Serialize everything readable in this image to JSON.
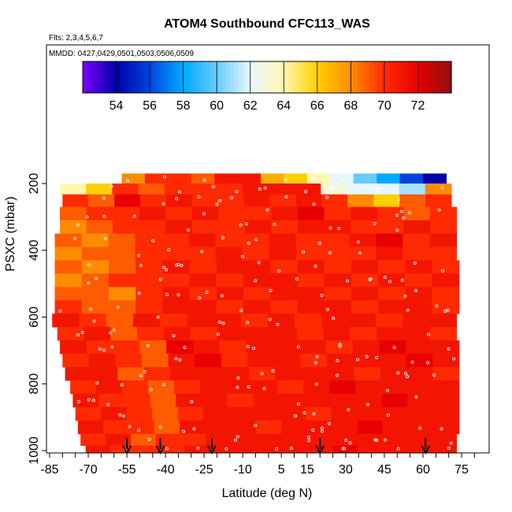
{
  "chart_data": {
    "type": "heatmap",
    "title": "ATOM4 Southbound CFC113_WAS",
    "flights_note": "Flts: 2,3,4,5,6,7",
    "dates_note": "MMDD: 0427,0429,0501,0503,0506,0509",
    "xlabel": "Latitude (deg N)",
    "ylabel": "PSXC (mbar)",
    "x_ticks": [
      -85,
      -70,
      -55,
      -40,
      -25,
      -10,
      5,
      15,
      30,
      45,
      60,
      75
    ],
    "x_tick_labels": [
      "-85",
      "-70",
      "-55",
      "-40",
      "-25",
      "-10",
      "5",
      "15",
      "30",
      "45",
      "60",
      "75"
    ],
    "y_ticks": [
      200,
      400,
      600,
      800,
      1000
    ],
    "y_tick_labels": [
      "200",
      "400",
      "600",
      "800",
      "1000"
    ],
    "y_reversed": true,
    "colorbar": {
      "range": [
        52,
        74
      ],
      "ticks": [
        54,
        56,
        58,
        60,
        62,
        64,
        66,
        68,
        70,
        72
      ],
      "tick_labels": [
        "54",
        "56",
        "58",
        "60",
        "62",
        "64",
        "66",
        "68",
        "70",
        "72"
      ],
      "colors": [
        "#7a00ff",
        "#0000aa",
        "#0044dd",
        "#00aaff",
        "#66ccff",
        "#e8f6ff",
        "#fff7b0",
        "#ffd000",
        "#ff8c00",
        "#ff2a00",
        "#e80000",
        "#8f1010"
      ]
    },
    "arrows_latitude": [
      -55,
      -42,
      -22,
      20,
      61
    ],
    "row_pressures": [
      185,
      215,
      250,
      290,
      330,
      370,
      410,
      450,
      490,
      530,
      570,
      610,
      650,
      690,
      730,
      770,
      810,
      850,
      890,
      930,
      970,
      1000
    ],
    "row_lat_start": [
      -57,
      -81,
      -80,
      -81,
      -81,
      -83,
      -83,
      -83,
      -83,
      -83,
      -83,
      -84,
      -82,
      -81,
      -80,
      -79,
      -77,
      -76,
      -75,
      -74,
      -73,
      -71
    ],
    "row_lat_end": [
      69,
      71,
      71,
      73,
      73,
      73,
      73,
      74,
      74,
      74,
      74,
      73,
      73,
      74,
      74,
      74,
      74,
      74,
      74,
      74,
      73,
      73
    ],
    "row_values": [
      [
        68,
        70,
        70,
        69,
        71,
        71,
        67,
        66,
        64,
        62,
        60,
        58,
        56,
        54
      ],
      [
        64,
        66,
        70,
        69,
        70,
        70,
        70,
        71,
        71,
        71,
        63,
        62,
        62,
        61,
        68
      ],
      [
        70,
        69,
        72,
        70,
        71,
        70,
        70,
        71,
        70,
        71,
        70,
        68,
        66,
        69,
        70
      ],
      [
        69,
        70,
        70,
        71,
        70,
        71,
        70,
        70,
        71,
        72,
        70,
        71,
        70,
        69,
        70
      ],
      [
        68,
        69,
        70,
        70,
        71,
        70,
        70,
        71,
        70,
        71,
        71,
        70,
        70,
        71,
        70
      ],
      [
        69,
        68,
        69,
        70,
        70,
        71,
        70,
        70,
        71,
        70,
        70,
        71,
        72,
        70,
        71
      ],
      [
        68,
        69,
        69,
        70,
        70,
        70,
        71,
        70,
        71,
        70,
        70,
        70,
        71,
        70,
        70
      ],
      [
        69,
        68,
        69,
        70,
        71,
        70,
        71,
        71,
        70,
        71,
        70,
        71,
        70,
        71,
        70
      ],
      [
        68,
        69,
        70,
        70,
        70,
        71,
        70,
        71,
        71,
        70,
        71,
        70,
        71,
        70,
        71
      ],
      [
        69,
        69,
        68,
        70,
        71,
        70,
        71,
        70,
        71,
        71,
        70,
        71,
        70,
        71,
        70
      ],
      [
        70,
        69,
        69,
        70,
        71,
        71,
        70,
        71,
        70,
        71,
        71,
        70,
        71,
        71,
        70
      ],
      [
        71,
        70,
        69,
        71,
        70,
        71,
        71,
        70,
        71,
        70,
        71,
        71,
        70,
        71,
        71
      ],
      [
        70,
        71,
        69,
        70,
        71,
        70,
        71,
        71,
        71,
        70,
        71,
        70,
        71,
        71,
        70
      ],
      [
        71,
        70,
        70,
        69,
        72,
        71,
        70,
        71,
        71,
        71,
        70,
        71,
        72,
        71,
        71
      ],
      [
        70,
        71,
        70,
        69,
        71,
        72,
        70,
        71,
        71,
        70,
        71,
        71,
        71,
        72,
        71
      ],
      [
        71,
        71,
        69,
        70,
        71,
        71,
        71,
        70,
        71,
        71,
        71,
        70,
        71,
        71,
        70
      ],
      [
        70,
        71,
        70,
        69,
        70,
        71,
        71,
        71,
        70,
        71,
        72,
        71,
        71,
        71,
        71
      ],
      [
        71,
        70,
        70,
        69,
        71,
        71,
        70,
        71,
        71,
        71,
        71,
        71,
        72,
        71,
        71
      ],
      [
        70,
        71,
        70,
        69,
        70,
        71,
        71,
        71,
        71,
        70,
        71,
        71,
        71,
        71,
        71
      ],
      [
        71,
        70,
        70,
        69,
        71,
        71,
        71,
        70,
        71,
        71,
        71,
        72,
        71,
        71,
        71
      ],
      [
        70,
        71,
        69,
        70,
        70,
        71,
        71,
        71,
        71,
        71,
        71,
        71,
        71,
        71,
        71
      ],
      [
        71,
        70,
        70,
        70,
        71,
        71,
        71,
        71,
        71,
        71,
        72,
        71,
        71,
        71,
        71
      ]
    ]
  }
}
